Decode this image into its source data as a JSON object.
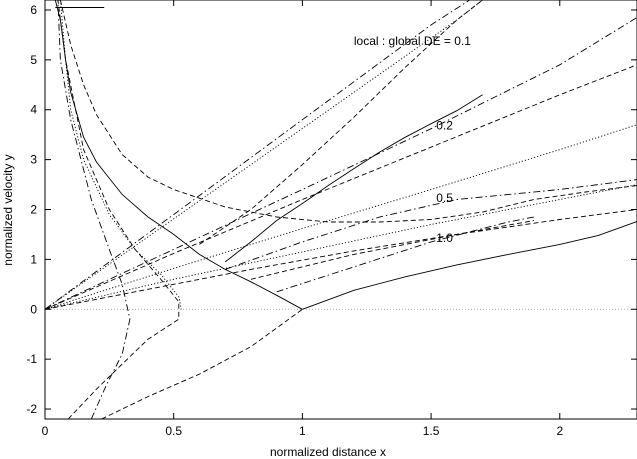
{
  "chart_data": {
    "type": "line",
    "title": "",
    "xlabel": "normalized distance x",
    "ylabel": "normalized velocity y",
    "xlim": [
      0,
      2.3
    ],
    "ylim": [
      -2.2,
      6.2
    ],
    "xticks": [
      0,
      0.5,
      1,
      1.5,
      2
    ],
    "xtick_labels": [
      "0",
      "0.5",
      "1",
      "1.5",
      "2"
    ],
    "yticks": [
      -2,
      -1,
      0,
      1,
      2,
      3,
      4,
      5,
      6
    ],
    "ytick_labels": [
      "-2",
      "-1",
      "0",
      "1",
      "2",
      "3",
      "4",
      "5",
      "6"
    ],
    "grid": false,
    "zero_line": true,
    "legend": "none",
    "annotations": [
      {
        "text": "local : global DE = 0.1",
        "x": 1.2,
        "y": 5.3
      },
      {
        "text": "0.2",
        "x": 1.52,
        "y": 3.6
      },
      {
        "text": "0.5",
        "x": 1.52,
        "y": 2.15
      },
      {
        "text": "1.0",
        "x": 1.52,
        "y": 1.35
      }
    ],
    "series": [
      {
        "style": "solid",
        "segments": [
          [
            [
              0.04,
              6.2
            ],
            [
              0.06,
              5.8
            ],
            [
              0.08,
              5.0
            ],
            [
              0.1,
              4.35
            ],
            [
              0.15,
              3.45
            ],
            [
              0.2,
              2.95
            ],
            [
              0.3,
              2.3
            ],
            [
              0.4,
              1.85
            ],
            [
              0.5,
              1.5
            ],
            [
              0.6,
              1.1
            ],
            [
              0.7,
              0.8
            ],
            [
              0.8,
              0.55
            ],
            [
              0.9,
              0.28
            ],
            [
              1.0,
              0.0
            ]
          ],
          [
            [
              1.0,
              0.0
            ],
            [
              1.2,
              0.38
            ],
            [
              1.4,
              0.65
            ],
            [
              1.6,
              0.89
            ],
            [
              1.8,
              1.1
            ],
            [
              2.0,
              1.3
            ],
            [
              2.15,
              1.48
            ],
            [
              2.3,
              1.76
            ]
          ],
          [
            [
              0.7,
              0.95
            ],
            [
              0.8,
              1.35
            ],
            [
              0.9,
              1.78
            ],
            [
              1.0,
              2.12
            ],
            [
              1.1,
              2.48
            ],
            [
              1.2,
              2.82
            ],
            [
              1.3,
              3.15
            ],
            [
              1.4,
              3.45
            ],
            [
              1.5,
              3.72
            ],
            [
              1.6,
              3.98
            ],
            [
              1.7,
              4.3
            ]
          ],
          [
            [
              0.04,
              6.05
            ],
            [
              0.23,
              6.05
            ]
          ]
        ]
      },
      {
        "style": "dashed",
        "segments": [
          [
            [
              0.06,
              6.2
            ],
            [
              0.1,
              5.3
            ],
            [
              0.15,
              4.5
            ],
            [
              0.2,
              3.9
            ],
            [
              0.3,
              3.1
            ],
            [
              0.4,
              2.65
            ],
            [
              0.5,
              2.4
            ],
            [
              0.7,
              2.05
            ],
            [
              0.9,
              1.85
            ],
            [
              1.1,
              1.75
            ],
            [
              1.3,
              1.75
            ],
            [
              1.5,
              1.8
            ],
            [
              1.7,
              1.95
            ],
            [
              1.9,
              2.2
            ],
            [
              2.1,
              2.35
            ],
            [
              2.3,
              2.48
            ]
          ],
          [
            [
              0.0,
              0.0
            ],
            [
              0.4,
              0.4
            ],
            [
              0.8,
              0.8
            ],
            [
              1.2,
              1.17
            ],
            [
              1.6,
              1.5
            ],
            [
              2.0,
              1.8
            ],
            [
              2.3,
              2.0
            ]
          ],
          [
            [
              0.0,
              0.0
            ],
            [
              0.5,
              1.12
            ],
            [
              1.0,
              2.2
            ],
            [
              1.5,
              3.25
            ],
            [
              2.0,
              4.3
            ],
            [
              2.3,
              4.9
            ]
          ],
          [
            [
              0.6,
              1.3
            ],
            [
              0.8,
              2.0
            ],
            [
              1.0,
              2.9
            ],
            [
              1.2,
              3.85
            ],
            [
              1.4,
              4.85
            ],
            [
              1.6,
              5.8
            ],
            [
              1.7,
              6.2
            ]
          ],
          [
            [
              0.8,
              0.6
            ],
            [
              1.2,
              1.1
            ],
            [
              1.6,
              1.5
            ],
            [
              1.9,
              1.78
            ]
          ],
          [
            [
              0.09,
              -2.2
            ],
            [
              0.2,
              -1.6
            ],
            [
              0.3,
              -1.1
            ],
            [
              0.4,
              -0.6
            ],
            [
              0.52,
              -0.2
            ],
            [
              0.52,
              0.15
            ],
            [
              0.45,
              0.6
            ],
            [
              0.35,
              1.2
            ],
            [
              0.25,
              2.0
            ],
            [
              0.15,
              3.2
            ],
            [
              0.08,
              5.0
            ],
            [
              0.05,
              6.2
            ]
          ],
          [
            [
              0.22,
              -2.2
            ],
            [
              0.4,
              -1.75
            ],
            [
              0.6,
              -1.3
            ],
            [
              0.8,
              -0.75
            ],
            [
              1.0,
              0.0
            ]
          ]
        ]
      },
      {
        "style": "dotted",
        "segments": [
          [
            [
              0.0,
              0.0
            ],
            [
              0.5,
              0.82
            ],
            [
              1.0,
              1.62
            ],
            [
              1.5,
              2.4
            ],
            [
              2.0,
              3.2
            ],
            [
              2.3,
              3.7
            ]
          ],
          [
            [
              0.0,
              0.0
            ],
            [
              0.5,
              0.6
            ],
            [
              1.0,
              1.15
            ],
            [
              1.5,
              1.7
            ],
            [
              2.0,
              2.2
            ],
            [
              2.3,
              2.5
            ]
          ],
          [
            [
              0.0,
              0.0
            ],
            [
              0.4,
              1.45
            ],
            [
              0.8,
              2.9
            ],
            [
              1.2,
              4.35
            ],
            [
              1.6,
              5.8
            ],
            [
              1.7,
              6.2
            ]
          ],
          [
            [
              0.06,
              6.2
            ],
            [
              0.08,
              5.0
            ],
            [
              0.1,
              4.0
            ],
            [
              0.15,
              3.0
            ],
            [
              0.25,
              1.9
            ],
            [
              0.35,
              1.2
            ],
            [
              0.45,
              0.7
            ],
            [
              0.52,
              0.25
            ],
            [
              0.53,
              0.0
            ]
          ]
        ]
      },
      {
        "style": "dashdot",
        "segments": [
          [
            [
              0.0,
              0.0
            ],
            [
              0.5,
              1.2
            ],
            [
              1.0,
              2.4
            ],
            [
              1.5,
              3.62
            ],
            [
              2.0,
              4.9
            ],
            [
              2.3,
              5.85
            ]
          ],
          [
            [
              0.0,
              0.0
            ],
            [
              0.5,
              1.9
            ],
            [
              1.0,
              3.8
            ],
            [
              1.5,
              5.7
            ],
            [
              1.65,
              6.2
            ]
          ],
          [
            [
              0.7,
              0.8
            ],
            [
              1.0,
              1.35
            ],
            [
              1.3,
              1.85
            ],
            [
              1.6,
              2.2
            ],
            [
              2.0,
              2.4
            ],
            [
              2.3,
              2.6
            ]
          ],
          [
            [
              0.9,
              0.35
            ],
            [
              1.2,
              0.85
            ],
            [
              1.5,
              1.35
            ],
            [
              1.8,
              1.75
            ],
            [
              1.9,
              1.85
            ]
          ],
          [
            [
              0.18,
              -2.2
            ],
            [
              0.24,
              -1.5
            ],
            [
              0.3,
              -0.9
            ],
            [
              0.33,
              -0.2
            ],
            [
              0.3,
              0.5
            ],
            [
              0.25,
              1.2
            ],
            [
              0.18,
              2.2
            ],
            [
              0.1,
              3.8
            ],
            [
              0.06,
              5.0
            ],
            [
              0.05,
              6.2
            ]
          ]
        ]
      }
    ]
  }
}
